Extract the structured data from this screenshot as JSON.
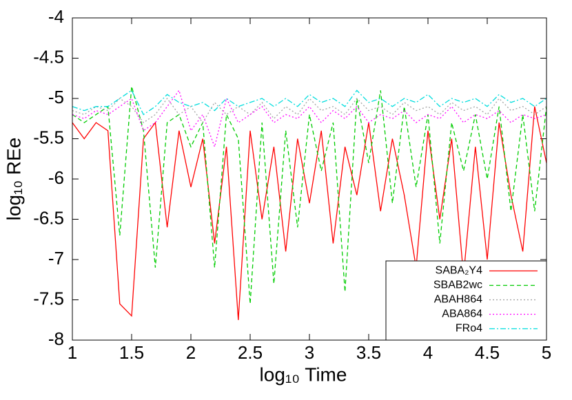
{
  "chart_data": {
    "type": "line",
    "xlabel": "log₁₀ Time",
    "ylabel": "log₁₀ REe",
    "x": [
      1.0,
      1.1,
      1.2,
      1.3,
      1.4,
      1.5,
      1.6,
      1.7,
      1.8,
      1.9,
      2.0,
      2.1,
      2.2,
      2.3,
      2.4,
      2.5,
      2.6,
      2.7,
      2.8,
      2.9,
      3.0,
      3.1,
      3.2,
      3.3,
      3.4,
      3.5,
      3.6,
      3.7,
      3.8,
      3.9,
      4.0,
      4.1,
      4.2,
      4.3,
      4.4,
      4.5,
      4.6,
      4.7,
      4.8,
      4.9,
      5.0
    ],
    "xlim": [
      1,
      5
    ],
    "xticks": [
      1,
      1.5,
      2,
      2.5,
      3,
      3.5,
      4,
      4.5,
      5
    ],
    "ylim": [
      -8,
      -4
    ],
    "yticks": [
      -8,
      -7.5,
      -7,
      -6.5,
      -6,
      -5.5,
      -5,
      -4.5,
      -4
    ],
    "legend": "bottom-right",
    "series": [
      {
        "name": "SABA₂Y4",
        "color": "#ff0000",
        "dash": "solid",
        "values": [
          -5.3,
          -5.5,
          -5.3,
          -5.4,
          -7.55,
          -7.7,
          -5.5,
          -5.3,
          -6.6,
          -5.4,
          -6.1,
          -5.5,
          -6.8,
          -5.6,
          -7.75,
          -5.4,
          -6.5,
          -5.6,
          -6.9,
          -5.5,
          -6.3,
          -5.4,
          -6.8,
          -5.6,
          -6.2,
          -5.3,
          -6.4,
          -5.5,
          -6.2,
          -7.1,
          -5.4,
          -6.5,
          -5.5,
          -7.2,
          -5.6,
          -7.0,
          -5.3,
          -6.2,
          -6.9,
          -5.1,
          -5.8
        ]
      },
      {
        "name": "SBAB2wc",
        "color": "#00cc00",
        "dash": "dashed",
        "values": [
          -5.2,
          -5.3,
          -5.2,
          -5.1,
          -6.7,
          -4.85,
          -5.4,
          -7.1,
          -5.3,
          -5.2,
          -5.6,
          -5.3,
          -7.1,
          -5.2,
          -5.5,
          -7.55,
          -5.3,
          -7.3,
          -5.4,
          -6.6,
          -5.2,
          -5.9,
          -5.3,
          -7.4,
          -5.0,
          -5.8,
          -4.9,
          -6.3,
          -5.1,
          -6.1,
          -5.2,
          -6.8,
          -5.3,
          -5.9,
          -5.2,
          -6.0,
          -5.1,
          -6.4,
          -5.2,
          -6.4,
          -5.1
        ]
      },
      {
        "name": "ABAH864",
        "color": "#a0a0a0",
        "dash": "dotted",
        "values": [
          -5.15,
          -5.2,
          -5.1,
          -5.15,
          -5.0,
          -5.1,
          -5.3,
          -5.2,
          -5.0,
          -5.2,
          -5.1,
          -5.3,
          -5.05,
          -5.2,
          -5.1,
          -5.2,
          -5.05,
          -5.25,
          -5.1,
          -5.2,
          -5.0,
          -5.15,
          -5.1,
          -5.2,
          -5.0,
          -5.15,
          -5.1,
          -5.2,
          -5.05,
          -5.15,
          -5.1,
          -5.2,
          -5.05,
          -5.15,
          -5.1,
          -5.2,
          -5.0,
          -5.15,
          -5.1,
          -5.2,
          -5.1
        ]
      },
      {
        "name": "ABA864",
        "color": "#ff00ff",
        "dash": "dotted",
        "values": [
          -5.2,
          -5.25,
          -5.15,
          -5.2,
          -5.1,
          -5.0,
          -5.4,
          -5.3,
          -5.1,
          -4.9,
          -5.4,
          -5.2,
          -5.6,
          -5.0,
          -5.3,
          -5.2,
          -5.1,
          -5.3,
          -5.2,
          -5.25,
          -5.1,
          -5.3,
          -5.15,
          -5.25,
          -5.1,
          -5.3,
          -5.2,
          -5.25,
          -5.15,
          -5.3,
          -5.2,
          -5.25,
          -5.1,
          -5.3,
          -5.2,
          -5.25,
          -5.15,
          -5.3,
          -5.2,
          -5.25,
          -5.2
        ]
      },
      {
        "name": "FRo4",
        "color": "#00dddd",
        "dash": "dashdot",
        "values": [
          -5.1,
          -5.15,
          -5.1,
          -5.1,
          -5.0,
          -4.9,
          -5.2,
          -5.1,
          -4.95,
          -5.05,
          -5.1,
          -5.05,
          -5.15,
          -5.0,
          -5.1,
          -5.05,
          -5.0,
          -5.1,
          -5.0,
          -5.1,
          -4.95,
          -5.05,
          -5.0,
          -5.1,
          -4.9,
          -5.05,
          -5.0,
          -5.1,
          -5.0,
          -5.05,
          -4.95,
          -5.1,
          -5.0,
          -5.05,
          -5.0,
          -5.1,
          -4.95,
          -5.05,
          -5.0,
          -5.1,
          -5.0
        ]
      }
    ]
  }
}
